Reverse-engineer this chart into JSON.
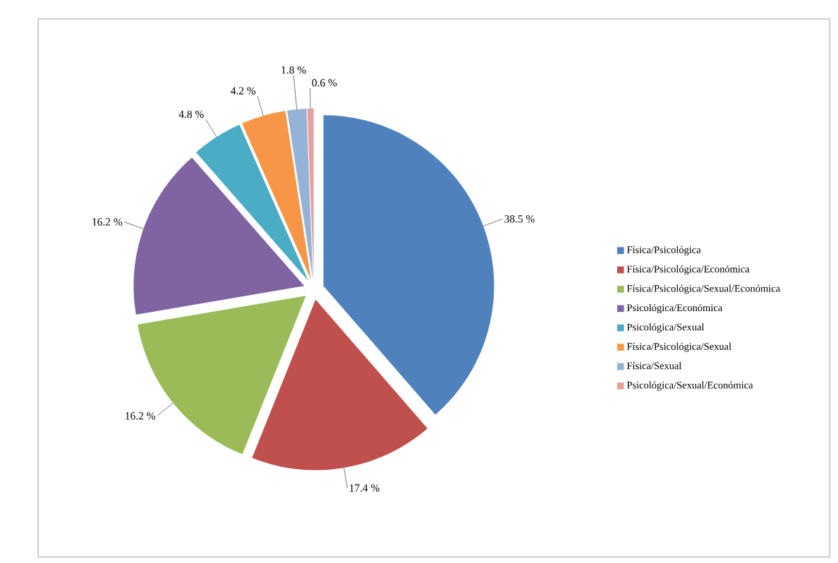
{
  "chart_data": {
    "type": "pie",
    "categories": [
      "Física/Psicológica",
      "Física/Psicológica/Económica",
      "Física/Psicológica/Sexual/Económica",
      "Psicológica/Económica",
      "Psicológica/Sexual",
      "Física/Psicológica/Sexual",
      "Física/Sexual",
      "Psicológica/Sexual/Económica"
    ],
    "values": [
      38.5,
      17.4,
      16.2,
      16.2,
      4.8,
      4.2,
      1.8,
      0.6
    ],
    "colors": [
      "#4f81bd",
      "#c0504d",
      "#9bbb59",
      "#8064a2",
      "#4bacc6",
      "#f79646",
      "#95b3d7",
      "#e6a09e"
    ],
    "value_labels": [
      "38.5 %",
      "17.4 %",
      "16.2 %",
      "16.2 %",
      "4.8 %",
      "4.2 %",
      "1.8 %",
      "0.6 %"
    ],
    "legend": "right"
  }
}
